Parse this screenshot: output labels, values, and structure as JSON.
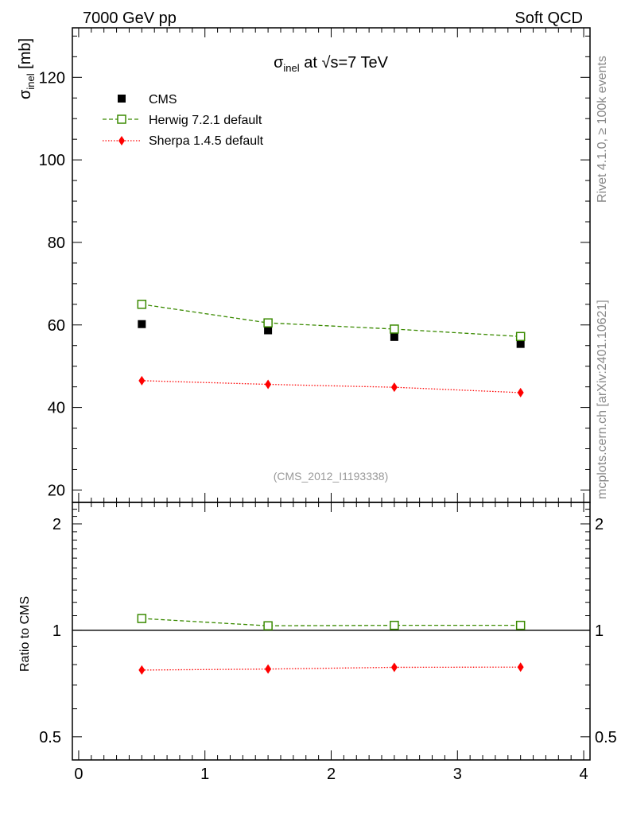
{
  "header": {
    "left": "7000 GeV pp",
    "right": "Soft QCD"
  },
  "side_text": {
    "upper": "Rivet 4.1.0, ≥ 100k events",
    "lower": "mcplots.cern.ch [arXiv:2401.10621]"
  },
  "watermark": "(CMS_2012_I1193338)",
  "chart_data": [
    {
      "type": "scatter",
      "title_parts": {
        "sym": "σ",
        "sub": "inel",
        "rest": " at √s=7 TeV"
      },
      "ylabel_parts": {
        "sym": "σ",
        "sub": "inel",
        "rest": " [mb]"
      },
      "ylim": [
        17,
        132
      ],
      "xlim": [
        -0.05,
        4.05
      ],
      "yticks": [
        20,
        40,
        60,
        80,
        100,
        120
      ],
      "legend_position": "top-left",
      "series": [
        {
          "name": "CMS",
          "x": [
            0.5,
            1.5,
            2.5,
            3.5
          ],
          "values": [
            60.2,
            58.7,
            57.1,
            55.4
          ],
          "color": "#000000",
          "marker": "filled-square",
          "line": "none"
        },
        {
          "name": "Herwig 7.2.1 default",
          "x": [
            0.5,
            1.5,
            2.5,
            3.5
          ],
          "values": [
            65.0,
            60.5,
            59.0,
            57.2
          ],
          "color": "#3a8a00",
          "marker": "open-square",
          "line": "dashed"
        },
        {
          "name": "Sherpa 1.4.5 default",
          "x": [
            0.5,
            1.5,
            2.5,
            3.5
          ],
          "values": [
            46.5,
            45.6,
            44.9,
            43.6
          ],
          "color": "#ff0000",
          "marker": "diamond",
          "line": "dotted"
        }
      ]
    },
    {
      "type": "scatter",
      "ylabel": "Ratio to CMS",
      "ylim": [
        0.43,
        2.3
      ],
      "xlim": [
        -0.05,
        4.05
      ],
      "yscale": "log",
      "yticks": [
        0.5,
        1,
        2
      ],
      "xticks": [
        0,
        1,
        2,
        3,
        4
      ],
      "reference_line": 1,
      "series": [
        {
          "name": "Herwig 7.2.1 default",
          "x": [
            0.5,
            1.5,
            2.5,
            3.5
          ],
          "values": [
            1.08,
            1.03,
            1.033,
            1.033
          ],
          "color": "#3a8a00",
          "marker": "open-square",
          "line": "dashed"
        },
        {
          "name": "Sherpa 1.4.5 default",
          "x": [
            0.5,
            1.5,
            2.5,
            3.5
          ],
          "values": [
            0.772,
            0.777,
            0.786,
            0.787
          ],
          "color": "#ff0000",
          "marker": "diamond",
          "line": "dotted"
        }
      ]
    }
  ]
}
